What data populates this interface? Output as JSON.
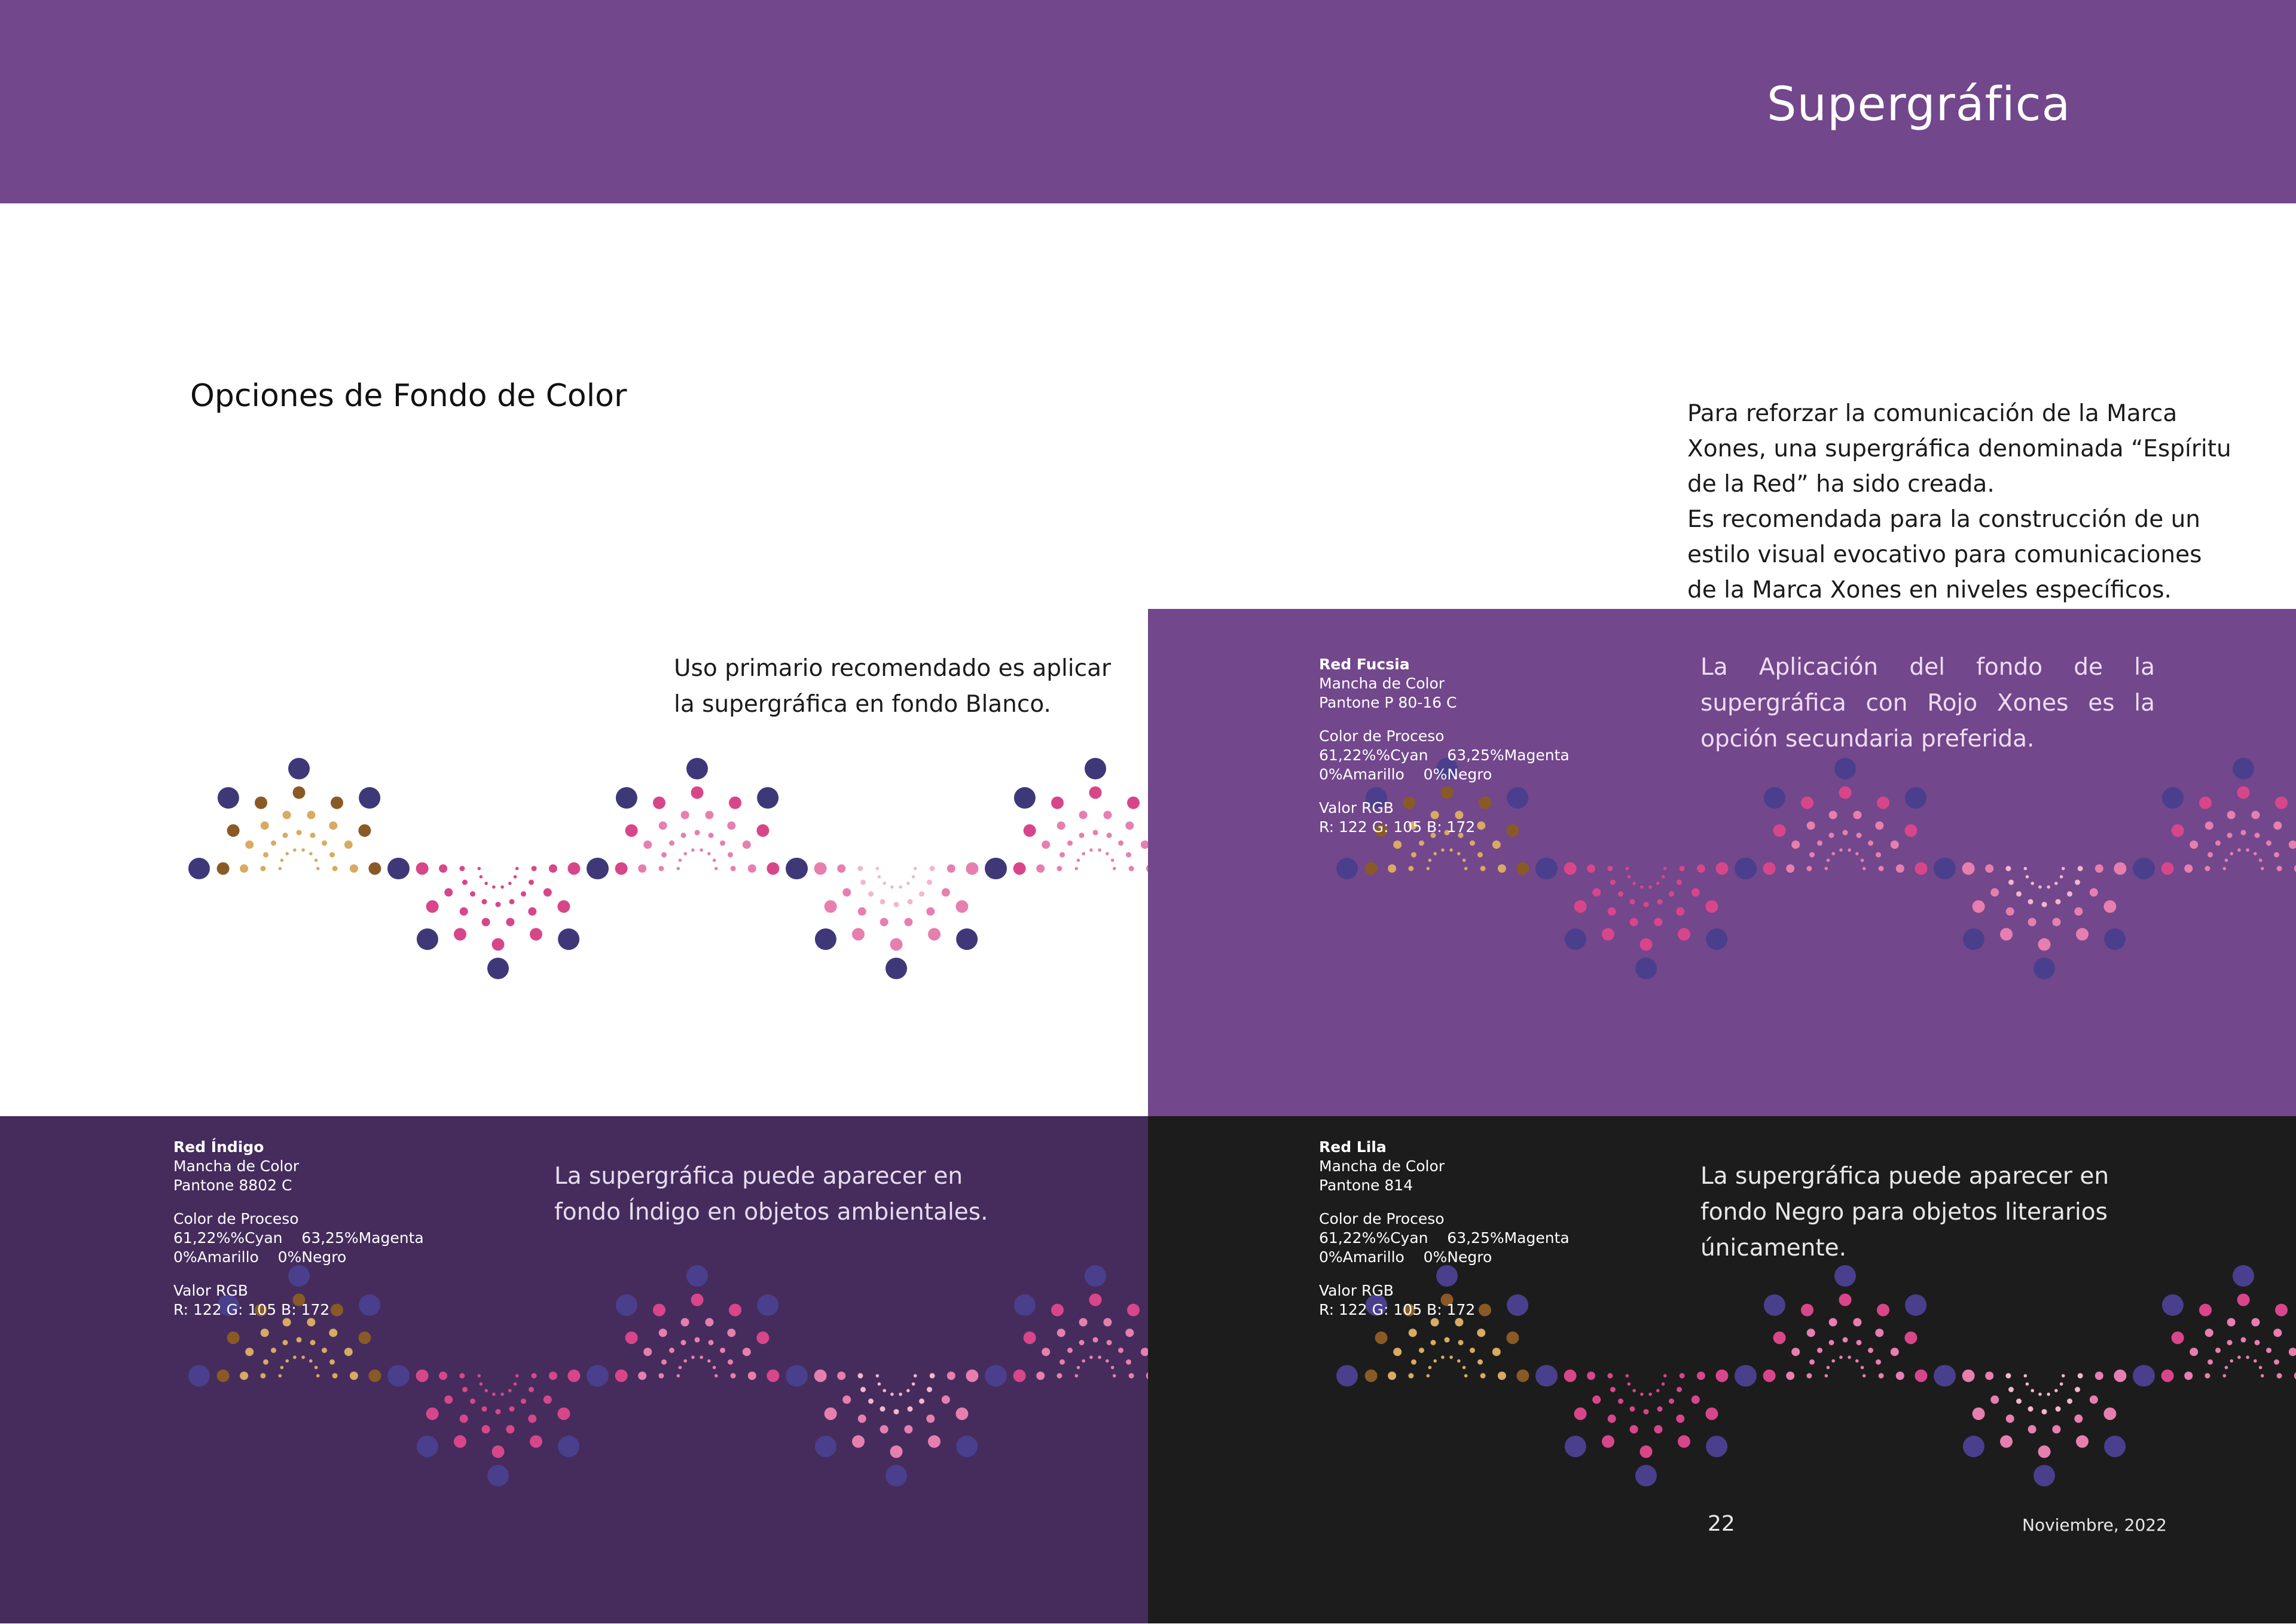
{
  "header": {
    "title": "Supergráfica",
    "background": "#72478c"
  },
  "section_title": "Opciones de Fondo de Color",
  "intro": [
    "Para reforzar la comunicación de la Marca Xones, una supergráfica denominada “Espíritu de la Red” ha sido creada.",
    "Es recomendada para la construcción de un estilo visual evocativo para comunicaciones de la Marca Xones en niveles específicos."
  ],
  "panels": {
    "white": {
      "caption": "Uso primario recomendado es aplicar la supergráfica en fondo Blanco.",
      "background": "#ffffff"
    },
    "fucsia": {
      "caption": "La Aplicación del fondo de la supergráfica con Rojo Xones es la opción secundaria preferida.",
      "background": "#72478c",
      "spec": {
        "name": "Red Fucsia",
        "swatch_label": "Mancha de Color",
        "pantone": "Pantone P 80-16 C",
        "process_label": "Color de Proceso",
        "process_line1": "61,22%%Cyan    63,25%Magenta",
        "process_line2": "0%Amarillo    0%Negro",
        "rgb_label": "Valor RGB",
        "rgb_value": "R: 122 G: 105 B: 172"
      }
    },
    "indigo": {
      "caption": "La supergráfica puede aparecer en fondo Índigo en objetos ambientales.",
      "background": "#452c5c",
      "spec": {
        "name": "Red Índigo",
        "swatch_label": "Mancha de Color",
        "pantone": "Pantone 8802 C",
        "process_label": "Color de Proceso",
        "process_line1": "61,22%%Cyan    63,25%Magenta",
        "process_line2": "0%Amarillo    0%Negro",
        "rgb_label": "Valor RGB",
        "rgb_value": "R: 122 G: 105 B: 172"
      }
    },
    "black": {
      "caption": "La supergráfica puede aparecer en fondo Negro para objetos literarios únicamente.",
      "background": "#1c1c1c",
      "spec": {
        "name": "Red Lila",
        "swatch_label": "Mancha de Color",
        "pantone": "Pantone 814",
        "process_label": "Color de Proceso",
        "process_line1": "61,22%%Cyan    63,25%Magenta",
        "process_line2": "0%Amarillo    0%Negro",
        "rgb_label": "Valor RGB",
        "rgb_value": "R: 122 G: 105 B: 172"
      }
    }
  },
  "supergraphic_colors": {
    "indigo_dot": "#3e3879",
    "indigo_dot_on_dark": "#4a3f8c",
    "brown": "#8a5a26",
    "gold": "#d8aa62",
    "fuchsia": "#d8468a",
    "pink": "#e77fae",
    "light_pink": "#f2b6cf"
  },
  "footer": {
    "page_number": "22",
    "date": "Noviembre, 2022"
  }
}
